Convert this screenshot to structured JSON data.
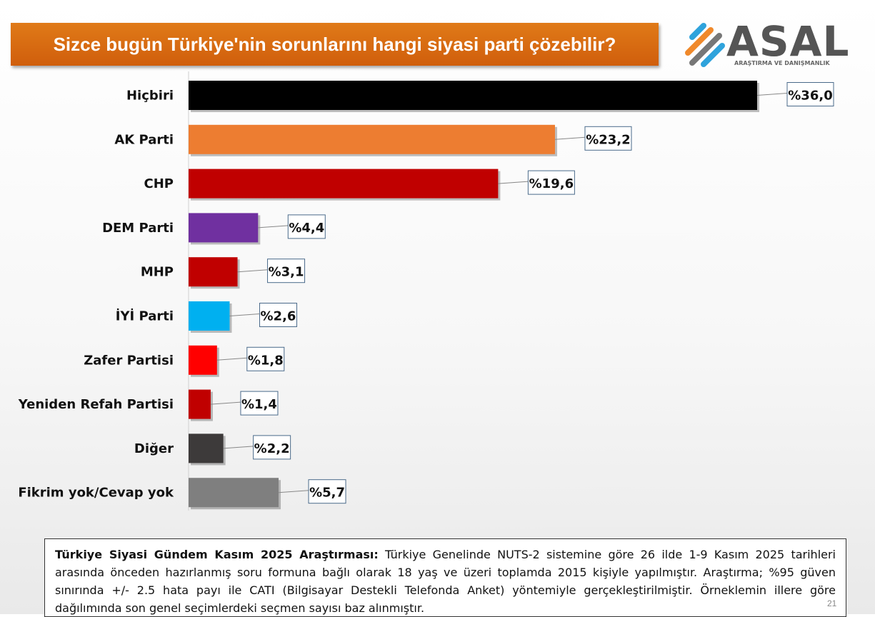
{
  "header": {
    "title": "Sizce bugün Türkiye'nin sorunlarını hangi siyasi parti çözebilir?"
  },
  "logo": {
    "word": "ASAL",
    "subtitle": "ARAŞTIRMA VE DANIŞMANLIK"
  },
  "chart_data": {
    "type": "bar",
    "orientation": "horizontal",
    "title": "Sizce bugün Türkiye'nin sorunlarını hangi siyasi parti çözebilir?",
    "categories": [
      "Hiçbiri",
      "AK Parti",
      "CHP",
      "DEM Parti",
      "MHP",
      "İYİ Parti",
      "Zafer Partisi",
      "Yeniden Refah Partisi",
      "Diğer",
      "Fikrim yok/Cevap yok"
    ],
    "values": [
      36.0,
      23.2,
      19.6,
      4.4,
      3.1,
      2.6,
      1.8,
      1.4,
      2.2,
      5.7
    ],
    "data_labels": [
      "%36,0",
      "%23,2",
      "%19,6",
      "%4,4",
      "%3,1",
      "%2,6",
      "%1,8",
      "%1,4",
      "%2,2",
      "%5,7"
    ],
    "colors": [
      "#000000",
      "#ed7d31",
      "#c00000",
      "#7030a0",
      "#c00000",
      "#00b0f0",
      "#ff0000",
      "#c00000",
      "#3d3a3a",
      "#7f7f7f"
    ],
    "xlim": [
      0,
      36
    ],
    "grid": false,
    "xlabel": "",
    "ylabel": ""
  },
  "footnote": {
    "heading": "Türkiye Siyasi Gündem Kasım 2025 Araştırması:",
    "text": " Türkiye Genelinde NUTS-2 sistemine göre 26 ilde 1-9 Kasım 2025 tarihleri arasında önceden hazırlanmış soru formuna bağlı olarak 18 yaş ve üzeri toplamda 2015 kişiyle yapılmıştır. Araştırma; %95 güven sınırında +/- 2.5 hata payı ile CATI (Bilgisayar Destekli Telefonda Anket) yöntemiyle gerçekleştirilmiştir. Örneklemin illere göre dağılımında son genel seçimlerdeki seçmen sayısı baz alınmıştır."
  },
  "page": {
    "number": "21"
  }
}
